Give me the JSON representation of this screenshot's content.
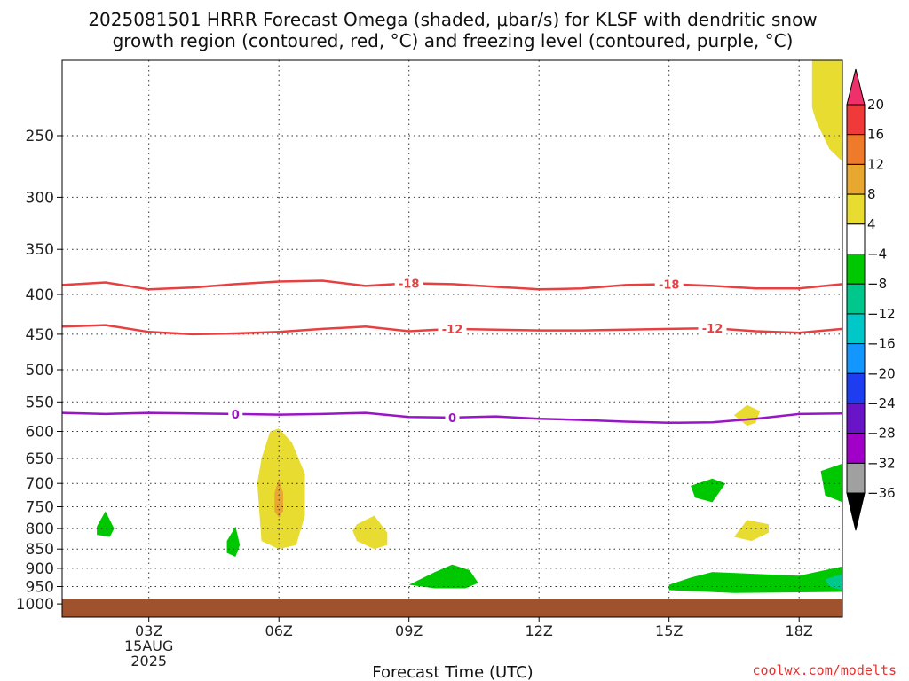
{
  "title_line1": "2025081501 HRRR Forecast Omega (shaded, μbar/s) for KLSF with dendritic snow",
  "title_line2": "growth region (contoured, red, °C) and freezing level (contoured, purple, °C)",
  "credit": "coolwx.com/modelts",
  "chart_data": {
    "type": "heatmap",
    "xlabel": "Forecast Time (UTC)",
    "x_range_hours": [
      1,
      19
    ],
    "x_ticks": [
      {
        "hour": 3,
        "label": "03Z",
        "sub": [
          "15AUG",
          "2025"
        ]
      },
      {
        "hour": 6,
        "label": "06Z"
      },
      {
        "hour": 9,
        "label": "09Z"
      },
      {
        "hour": 12,
        "label": "12Z"
      },
      {
        "hour": 15,
        "label": "15Z"
      },
      {
        "hour": 18,
        "label": "18Z"
      }
    ],
    "y_ticks": [
      250,
      300,
      350,
      400,
      450,
      500,
      550,
      600,
      650,
      700,
      750,
      800,
      850,
      900,
      950,
      1000
    ],
    "y_range_hpa": [
      200,
      1040
    ],
    "grid": "dotted",
    "colorbar": {
      "labels": [
        "20",
        "16",
        "12",
        "8",
        "4",
        "−4",
        "−8",
        "−12",
        "−16",
        "−20",
        "−24",
        "−28",
        "−32",
        "−36"
      ],
      "colors": [
        "#f0306a",
        "#f03a3a",
        "#ee7a2a",
        "#e8a830",
        "#e8dc30",
        "#ffffff",
        "#00c800",
        "#00c88c",
        "#00c8c8",
        "#1496ff",
        "#1e3cf0",
        "#6a14c8",
        "#a000c8",
        "#a0a0a0",
        "#000000"
      ]
    },
    "contours": [
      {
        "label": "-18",
        "color": "#e84040",
        "points": [
          [
            1,
            389
          ],
          [
            2,
            386
          ],
          [
            3,
            394
          ],
          [
            4,
            392
          ],
          [
            5,
            388
          ],
          [
            6,
            385
          ],
          [
            7,
            384
          ],
          [
            8,
            390
          ],
          [
            9,
            387
          ],
          [
            10,
            388
          ],
          [
            11,
            391
          ],
          [
            12,
            394
          ],
          [
            13,
            393
          ],
          [
            14,
            389
          ],
          [
            15,
            388
          ],
          [
            16,
            390
          ],
          [
            17,
            393
          ],
          [
            18,
            393
          ],
          [
            19,
            388
          ]
        ],
        "label_hours": [
          9,
          15
        ]
      },
      {
        "label": "-12",
        "color": "#e84040",
        "points": [
          [
            1,
            440
          ],
          [
            2,
            438
          ],
          [
            3,
            447
          ],
          [
            4,
            450
          ],
          [
            5,
            449
          ],
          [
            6,
            447
          ],
          [
            7,
            443
          ],
          [
            8,
            440
          ],
          [
            9,
            446
          ],
          [
            10,
            443
          ],
          [
            11,
            444
          ],
          [
            12,
            445
          ],
          [
            13,
            445
          ],
          [
            14,
            444
          ],
          [
            15,
            443
          ],
          [
            16,
            442
          ],
          [
            17,
            446
          ],
          [
            18,
            448
          ],
          [
            19,
            443
          ]
        ],
        "label_hours": [
          10,
          16
        ]
      },
      {
        "label": "0",
        "color": "#9a14c8",
        "points": [
          [
            1,
            568
          ],
          [
            2,
            570
          ],
          [
            3,
            568
          ],
          [
            4,
            569
          ],
          [
            5,
            570
          ],
          [
            6,
            571
          ],
          [
            7,
            570
          ],
          [
            8,
            568
          ],
          [
            9,
            575
          ],
          [
            10,
            576
          ],
          [
            11,
            574
          ],
          [
            12,
            578
          ],
          [
            13,
            580
          ],
          [
            14,
            583
          ],
          [
            15,
            585
          ],
          [
            16,
            584
          ],
          [
            17,
            578
          ],
          [
            18,
            570
          ],
          [
            19,
            569
          ]
        ],
        "label_hours": [
          5,
          10
        ]
      }
    ],
    "shaded_regions": [
      {
        "value": 6,
        "color": "#e8dc30",
        "points": [
          [
            6,
            595
          ],
          [
            6.3,
            620
          ],
          [
            6.6,
            680
          ],
          [
            6.6,
            770
          ],
          [
            6.4,
            840
          ],
          [
            6,
            850
          ],
          [
            5.6,
            830
          ],
          [
            5.5,
            700
          ],
          [
            5.6,
            650
          ],
          [
            5.8,
            600
          ]
        ]
      },
      {
        "value": 10,
        "color": "#e8a830",
        "points": [
          [
            6,
            690
          ],
          [
            6.1,
            720
          ],
          [
            6.1,
            760
          ],
          [
            6,
            775
          ],
          [
            5.9,
            760
          ],
          [
            5.9,
            720
          ]
        ]
      },
      {
        "value": 6,
        "color": "#e8dc30",
        "points": [
          [
            7.8,
            790
          ],
          [
            8.2,
            770
          ],
          [
            8.5,
            810
          ],
          [
            8.5,
            840
          ],
          [
            8.2,
            850
          ],
          [
            7.8,
            830
          ],
          [
            7.7,
            805
          ]
        ]
      },
      {
        "value": 6,
        "color": "#e8dc30",
        "points": [
          [
            16.5,
            572
          ],
          [
            16.8,
            555
          ],
          [
            17.1,
            565
          ],
          [
            17.0,
            585
          ],
          [
            16.8,
            590
          ]
        ]
      },
      {
        "value": 6,
        "color": "#e8dc30",
        "points": [
          [
            16.5,
            820
          ],
          [
            16.8,
            780
          ],
          [
            17.3,
            790
          ],
          [
            17.3,
            810
          ],
          [
            16.9,
            830
          ]
        ]
      },
      {
        "value": 6,
        "color": "#e8dc30",
        "points": [
          [
            18.3,
            200
          ],
          [
            19,
            200
          ],
          [
            19,
            270
          ],
          [
            18.7,
            260
          ],
          [
            18.4,
            240
          ],
          [
            18.3,
            230
          ]
        ]
      },
      {
        "value": -6,
        "color": "#00c800",
        "points": [
          [
            1.8,
            795
          ],
          [
            2.0,
            760
          ],
          [
            2.2,
            800
          ],
          [
            2.1,
            820
          ],
          [
            1.8,
            815
          ]
        ]
      },
      {
        "value": -6,
        "color": "#00c800",
        "points": [
          [
            4.8,
            830
          ],
          [
            5.0,
            795
          ],
          [
            5.1,
            840
          ],
          [
            5.0,
            870
          ],
          [
            4.8,
            860
          ]
        ]
      },
      {
        "value": -6,
        "color": "#00c800",
        "points": [
          [
            9.0,
            945
          ],
          [
            9.6,
            910
          ],
          [
            10.0,
            890
          ],
          [
            10.4,
            905
          ],
          [
            10.6,
            940
          ],
          [
            10.3,
            955
          ],
          [
            9.6,
            955
          ]
        ]
      },
      {
        "value": -6,
        "color": "#00c800",
        "points": [
          [
            15.5,
            705
          ],
          [
            16.0,
            690
          ],
          [
            16.3,
            700
          ],
          [
            16.0,
            740
          ],
          [
            15.6,
            730
          ]
        ]
      },
      {
        "value": -6,
        "color": "#00c800",
        "points": [
          [
            18.5,
            675
          ],
          [
            19,
            660
          ],
          [
            19,
            740
          ],
          [
            18.6,
            725
          ]
        ]
      },
      {
        "value": -6,
        "color": "#00c800",
        "points": [
          [
            15.0,
            945
          ],
          [
            15.5,
            925
          ],
          [
            16.0,
            910
          ],
          [
            18.0,
            920
          ],
          [
            19,
            895
          ],
          [
            19,
            965
          ],
          [
            16.5,
            968
          ],
          [
            15.0,
            960
          ]
        ]
      },
      {
        "value": -10,
        "color": "#00c88c",
        "points": [
          [
            18.6,
            930
          ],
          [
            19,
            915
          ],
          [
            19,
            960
          ],
          [
            18.7,
            950
          ]
        ]
      }
    ]
  }
}
